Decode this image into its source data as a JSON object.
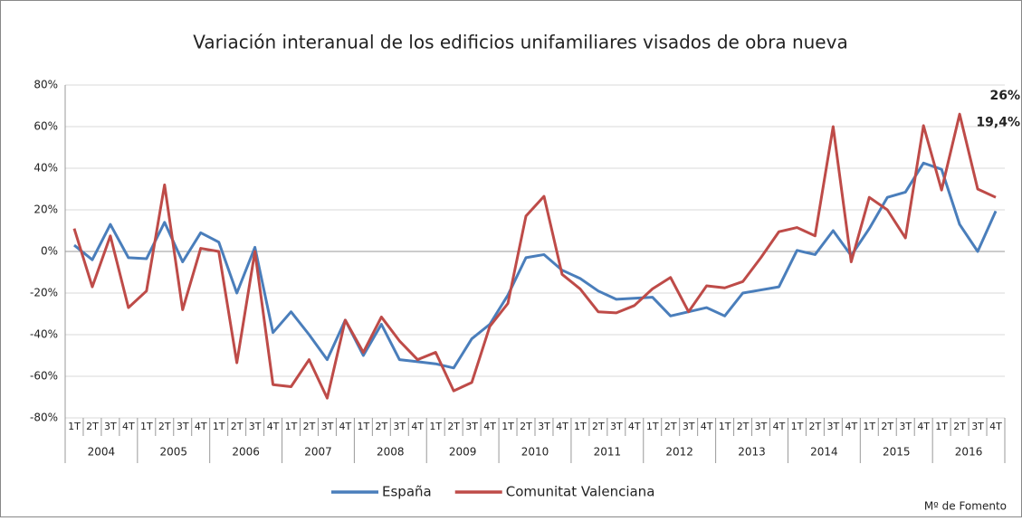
{
  "chart_data": {
    "type": "line",
    "title": "Variación interanual de los edificios unifamiliares visados de obra nueva",
    "categories": [
      "1T",
      "2T",
      "3T",
      "4T",
      "1T",
      "2T",
      "3T",
      "4T",
      "1T",
      "2T",
      "3T",
      "4T",
      "1T",
      "2T",
      "3T",
      "4T",
      "1T",
      "2T",
      "3T",
      "4T",
      "1T",
      "2T",
      "3T",
      "4T",
      "1T",
      "2T",
      "3T",
      "4T",
      "1T",
      "2T",
      "3T",
      "4T",
      "1T",
      "2T",
      "3T",
      "4T",
      "1T",
      "2T",
      "3T",
      "4T",
      "1T",
      "2T",
      "3T",
      "4T",
      "1T",
      "2T",
      "3T",
      "4T",
      "1T",
      "2T",
      "3T",
      "4T"
    ],
    "years": [
      "2004",
      "2005",
      "2006",
      "2007",
      "2008",
      "2009",
      "2010",
      "2011",
      "2012",
      "2013",
      "2014",
      "2015",
      "2016"
    ],
    "series": [
      {
        "name": "España",
        "color": "#4a7ebb",
        "values": [
          3,
          -4,
          13,
          -3,
          -3.5,
          14,
          -5,
          9,
          4.5,
          -20,
          2,
          -39,
          -29,
          -40,
          -52,
          -33,
          -50,
          -35,
          -52,
          -53,
          -54,
          -56,
          -42,
          -35,
          -21,
          -3,
          -1.5,
          -9,
          -13,
          -19,
          -23,
          -22.5,
          -22,
          -31,
          -29,
          -27,
          -31,
          -20,
          -18.5,
          -17,
          0.5,
          -1.5,
          10,
          -2,
          11,
          26,
          28.5,
          42.5,
          39.5,
          13,
          0,
          19.4
        ],
        "value_labels": [
          null,
          null,
          null,
          null,
          null,
          null,
          null,
          null,
          null,
          null,
          null,
          null,
          null,
          null,
          null,
          null,
          null,
          null,
          null,
          null,
          null,
          null,
          null,
          null,
          null,
          null,
          null,
          null,
          null,
          null,
          null,
          null,
          null,
          null,
          null,
          null,
          null,
          null,
          null,
          null,
          null,
          null,
          null,
          null,
          null,
          null,
          null,
          null,
          null,
          null,
          null,
          "19,4%"
        ]
      },
      {
        "name": "Comunitat Valenciana",
        "color": "#be4b48",
        "values": [
          11,
          -17,
          7.5,
          -27,
          -19,
          32,
          -28,
          1.5,
          0,
          -53.5,
          0,
          -64,
          -65,
          -52,
          -70.5,
          -33,
          -48.5,
          -31.5,
          -43,
          -52,
          -48.5,
          -67,
          -63,
          -36,
          -25,
          17,
          26.5,
          -11,
          -18,
          -29,
          -29.5,
          -26,
          -18,
          -12.5,
          -29,
          -16.5,
          -17.5,
          -14.5,
          -3,
          9.5,
          11.5,
          7.5,
          60,
          -5,
          26,
          20,
          6.5,
          60.5,
          29.5,
          66,
          30,
          26
        ],
        "value_labels": [
          null,
          null,
          null,
          null,
          null,
          null,
          null,
          null,
          null,
          null,
          null,
          null,
          null,
          null,
          null,
          null,
          null,
          null,
          null,
          null,
          null,
          null,
          null,
          null,
          null,
          null,
          null,
          null,
          null,
          null,
          null,
          null,
          null,
          null,
          null,
          null,
          null,
          null,
          null,
          null,
          null,
          null,
          null,
          null,
          null,
          null,
          null,
          null,
          null,
          null,
          null,
          "26%"
        ]
      }
    ],
    "ylim": [
      -80,
      80
    ],
    "yticks": [
      {
        "value": -80,
        "label": "-80%"
      },
      {
        "value": -60,
        "label": "-60%"
      },
      {
        "value": -40,
        "label": "-40%"
      },
      {
        "value": -20,
        "label": "-20%"
      },
      {
        "value": 0,
        "label": "0%"
      },
      {
        "value": 20,
        "label": "20%"
      },
      {
        "value": 40,
        "label": "40%"
      },
      {
        "value": 60,
        "label": "60%"
      },
      {
        "value": 80,
        "label": "80%"
      }
    ],
    "grid": true,
    "legend": "bottom",
    "source": "Mº  de Fomento"
  }
}
